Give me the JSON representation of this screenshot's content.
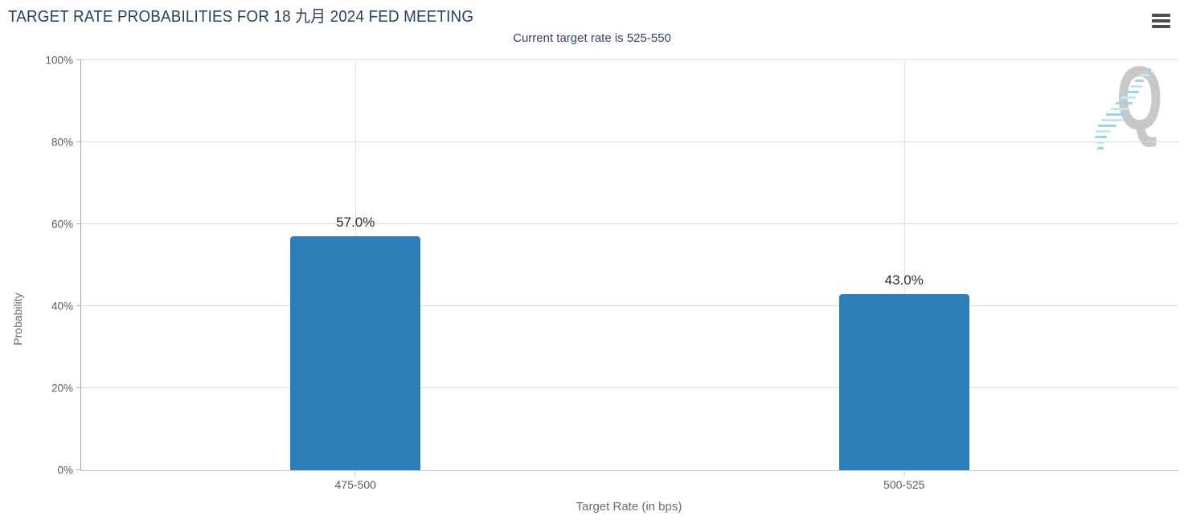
{
  "header": {
    "title": "TARGET RATE PROBABILITIES FOR 18 九月 2024 FED MEETING",
    "menu_icon": "hamburger-icon"
  },
  "chart_data": {
    "type": "bar",
    "title": "Current target rate is 525-550",
    "categories": [
      "475-500",
      "500-525"
    ],
    "values": [
      57.0,
      43.0
    ],
    "value_labels": [
      "57.0%",
      "43.0%"
    ],
    "xlabel": "Target Rate (in bps)",
    "ylabel": "Probability",
    "ylim": [
      0,
      100
    ],
    "yticks": [
      "0%",
      "20%",
      "40%",
      "60%",
      "80%",
      "100%"
    ],
    "grid": true,
    "legend": "none",
    "bar_color": "#2d7eb8",
    "watermark": "Q"
  },
  "colors": {
    "title": "#26425f",
    "subtitle": "#32455c",
    "bar": "#2d7eb8",
    "gridline": "#dcdcdc",
    "axis_line": "#aaaaaa",
    "tick_label": "#5c5c5c",
    "axis_title": "#6b6b6b",
    "data_label": "#2d2d2d",
    "watermark_q": "#c8c8c8",
    "watermark_dash": "#9ed3e8"
  }
}
